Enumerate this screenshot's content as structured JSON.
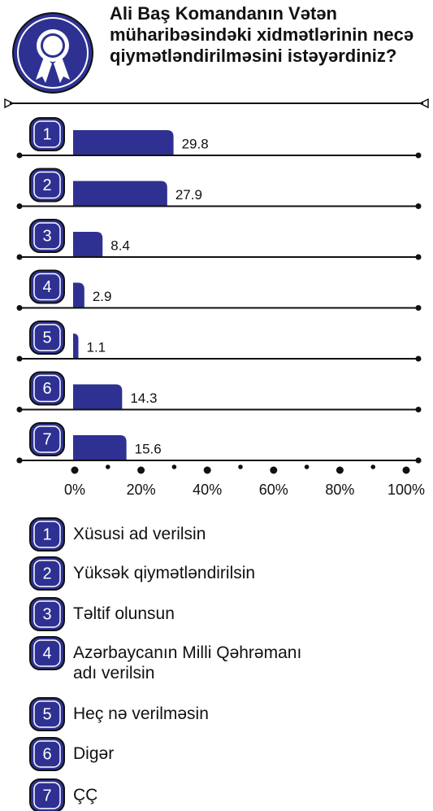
{
  "chart_data": {
    "type": "bar",
    "orientation": "horizontal",
    "title": "Ali Baş Komandanın Vətən müharibəsindəki xidmətlərinin necə qiymətləndirilməsini istəyərdiniz?",
    "codes": [
      "1",
      "2",
      "3",
      "4",
      "5",
      "6",
      "7"
    ],
    "categories": [
      "Xüsusi ad verilsin",
      "Yüksək qiymətləndirilsin",
      "Təltif olunsun",
      "Azərbaycanın Milli Qəhrəmanı adı verilsin",
      "Heç nə verilməsin",
      "Digər",
      "ÇÇ"
    ],
    "values": [
      29.8,
      27.9,
      8.4,
      2.9,
      1.1,
      14.3,
      15.6
    ],
    "color": "#2e3192",
    "xlim": [
      0,
      100
    ],
    "xticks": [
      {
        "value": 0,
        "label": "0%"
      },
      {
        "value": 20,
        "label": "20%"
      },
      {
        "value": 40,
        "label": "40%"
      },
      {
        "value": 60,
        "label": "60%"
      },
      {
        "value": 80,
        "label": "80%"
      },
      {
        "value": 100,
        "label": "100%"
      }
    ],
    "minor_xticks": [
      10,
      30,
      50,
      70,
      90
    ]
  }
}
